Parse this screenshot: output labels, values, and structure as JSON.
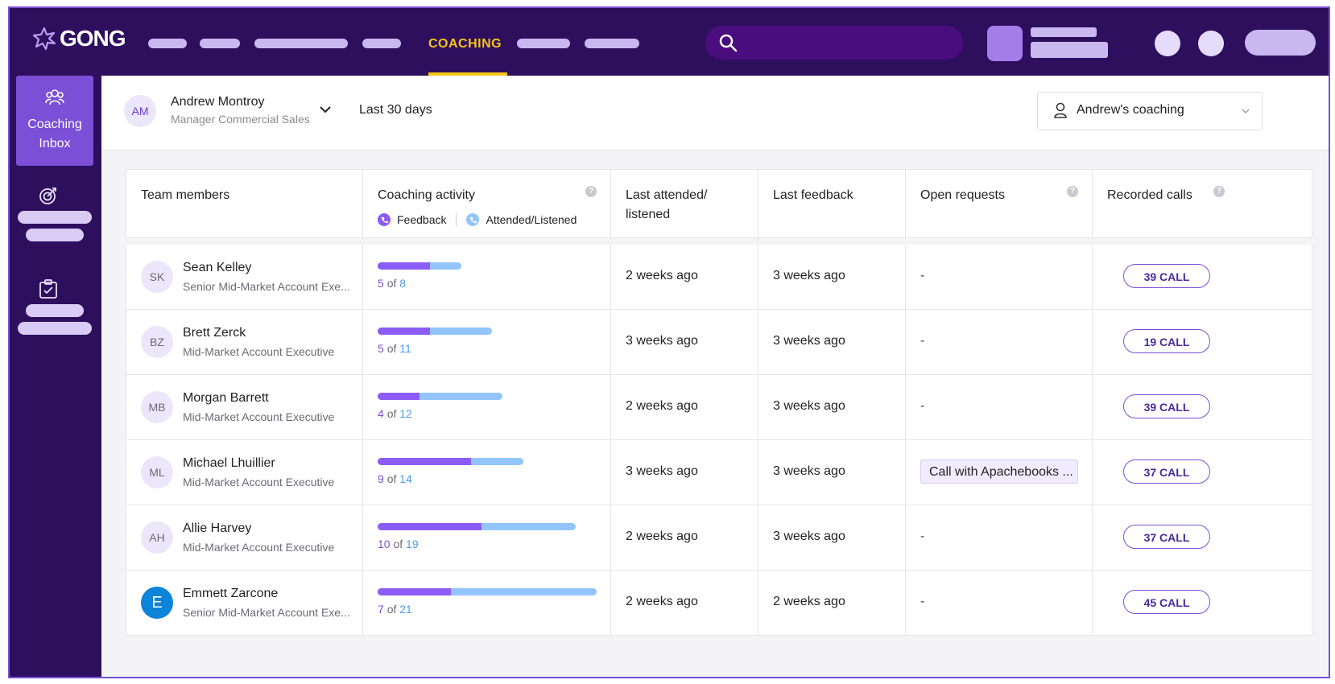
{
  "header": {
    "logo_text": "GONG",
    "active_nav": "COACHING",
    "colors": {
      "topbar": "#2e0f5e",
      "accent": "#f5c518",
      "brand": "#7b4fd6"
    }
  },
  "sidebar": {
    "active_item_label_1": "Coaching",
    "active_item_label_2": "Inbox",
    "icons": [
      "people-icon",
      "target-icon",
      "clipboard-icon"
    ]
  },
  "filters": {
    "manager_initials": "AM",
    "manager_name": "Andrew Montroy",
    "manager_role": "Manager Commercial Sales",
    "period": "Last 30 days",
    "view": "Andrew's coaching"
  },
  "table": {
    "headers": {
      "team_members": "Team members",
      "coaching_activity": "Coaching activity",
      "legend_feedback": "Feedback",
      "legend_attended": "Attended/Listened",
      "last_attended_1": "Last attended/",
      "last_attended_2": "listened",
      "last_feedback": "Last feedback",
      "open_requests": "Open requests",
      "recorded_calls": "Recorded calls"
    },
    "rows": [
      {
        "initials": "SK",
        "name": "Sean Kelley",
        "role": "Senior Mid-Market Account Exe...",
        "feedback": 5,
        "total": 8,
        "of": "of",
        "last_attended": "2 weeks ago",
        "last_feedback": "3 weeks ago",
        "open_request": "-",
        "calls": "39 CALL"
      },
      {
        "initials": "BZ",
        "name": "Brett Zerck",
        "role": "Mid-Market Account Executive",
        "feedback": 5,
        "total": 11,
        "of": "of",
        "last_attended": "3 weeks ago",
        "last_feedback": "3 weeks ago",
        "open_request": "-",
        "calls": "19 CALL"
      },
      {
        "initials": "MB",
        "name": "Morgan Barrett",
        "role": "Mid-Market Account Executive",
        "feedback": 4,
        "total": 12,
        "of": "of",
        "last_attended": "2 weeks ago",
        "last_feedback": "3 weeks ago",
        "open_request": "-",
        "calls": "39 CALL"
      },
      {
        "initials": "ML",
        "name": "Michael Lhuillier",
        "role": "Mid-Market Account Executive",
        "feedback": 9,
        "total": 14,
        "of": "of",
        "last_attended": "3 weeks ago",
        "last_feedback": "3 weeks ago",
        "open_request": "Call with Apachebooks ...",
        "calls": "37 CALL"
      },
      {
        "initials": "AH",
        "name": "Allie Harvey",
        "role": "Mid-Market Account Executive",
        "feedback": 10,
        "total": 19,
        "of": "of",
        "last_attended": "2 weeks ago",
        "last_feedback": "3 weeks ago",
        "open_request": "-",
        "calls": "37 CALL"
      },
      {
        "initials": "E",
        "name": "Emmett Zarcone",
        "role": "Senior Mid-Market Account Exe...",
        "feedback": 7,
        "total": 21,
        "of": "of",
        "last_attended": "2 weeks ago",
        "last_feedback": "2 weeks ago",
        "open_request": "-",
        "calls": "45 CALL"
      }
    ]
  }
}
